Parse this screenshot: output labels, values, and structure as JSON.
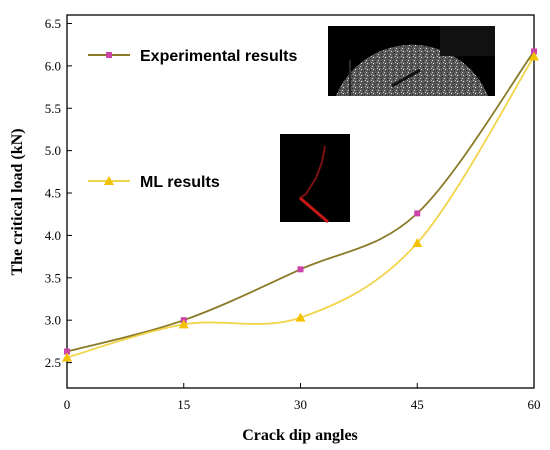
{
  "chart_data": {
    "type": "line",
    "xlabel": "Crack dip angles",
    "ylabel": "The critical load (kN)",
    "x": [
      0,
      15,
      30,
      45,
      60
    ],
    "xlim": [
      0,
      60
    ],
    "ylim": [
      2.2,
      6.6
    ],
    "xticks": [
      "0",
      "15",
      "30",
      "45",
      "60"
    ],
    "yticks": [
      "2.5",
      "3.0",
      "3.5",
      "4.0",
      "4.5",
      "5.0",
      "5.5",
      "6.0",
      "6.5"
    ],
    "ytick_values": [
      2.5,
      3.0,
      3.5,
      4.0,
      4.5,
      5.0,
      5.5,
      6.0,
      6.5
    ],
    "grid": false,
    "legend_placement": "left",
    "series": [
      {
        "name": "Experimental results",
        "values": [
          2.63,
          3.0,
          3.6,
          4.26,
          6.17
        ],
        "color": "#8a7a28",
        "marker_color": "#cc44aa",
        "marker": "square"
      },
      {
        "name": "ML results",
        "values": [
          2.56,
          2.95,
          3.03,
          3.91,
          6.11
        ],
        "color": "#f2d54a",
        "marker_color": "#f2c200",
        "marker": "triangle"
      }
    ]
  }
}
